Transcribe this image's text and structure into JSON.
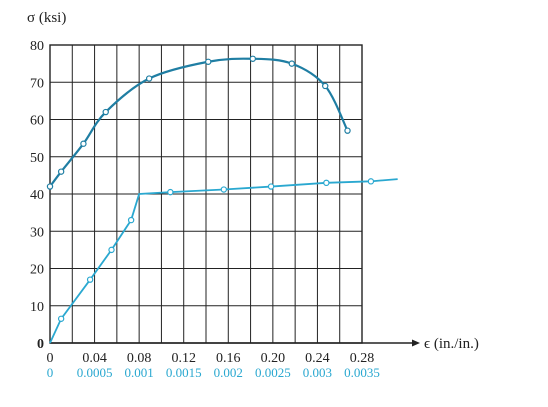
{
  "chart_data": {
    "type": "line",
    "ylabel": "σ (ksi)",
    "xlabel": "ϵ (in./in.)",
    "xlim": [
      0,
      0.28
    ],
    "ylim": [
      0,
      80
    ],
    "grid": true,
    "x_ticks": [
      "0",
      "0.04",
      "0.08",
      "0.12",
      "0.16",
      "0.20",
      "0.24",
      "0.28"
    ],
    "x_ticks_lower": [
      "0",
      "0.0005",
      "0.001",
      "0.0015",
      "0.002",
      "0.0025",
      "0.003",
      "0.0035"
    ],
    "y_ticks": [
      "0",
      "10",
      "20",
      "30",
      "40",
      "50",
      "60",
      "70",
      "80"
    ],
    "series": [
      {
        "color": "#1f7ea3",
        "x_scale": "upper",
        "points": [
          [
            0,
            42
          ],
          [
            0.01,
            46
          ],
          [
            0.03,
            53.5
          ],
          [
            0.05,
            62
          ],
          [
            0.089,
            71
          ],
          [
            0.142,
            75.5
          ],
          [
            0.182,
            76.3
          ],
          [
            0.217,
            75
          ],
          [
            0.247,
            69
          ],
          [
            0.267,
            57
          ]
        ]
      },
      {
        "color": "#2aa8d0",
        "x_scale": "lower",
        "points": [
          [
            0,
            0
          ],
          [
            0.000125,
            6.5
          ],
          [
            0.00045,
            17
          ],
          [
            0.00069,
            25
          ],
          [
            0.00091,
            33
          ],
          [
            0.001,
            40
          ],
          [
            0.00135,
            40.5
          ],
          [
            0.00195,
            41.2
          ],
          [
            0.00248,
            42
          ],
          [
            0.0031,
            43
          ],
          [
            0.0036,
            43.4
          ],
          [
            0.0039,
            44
          ]
        ]
      }
    ]
  }
}
